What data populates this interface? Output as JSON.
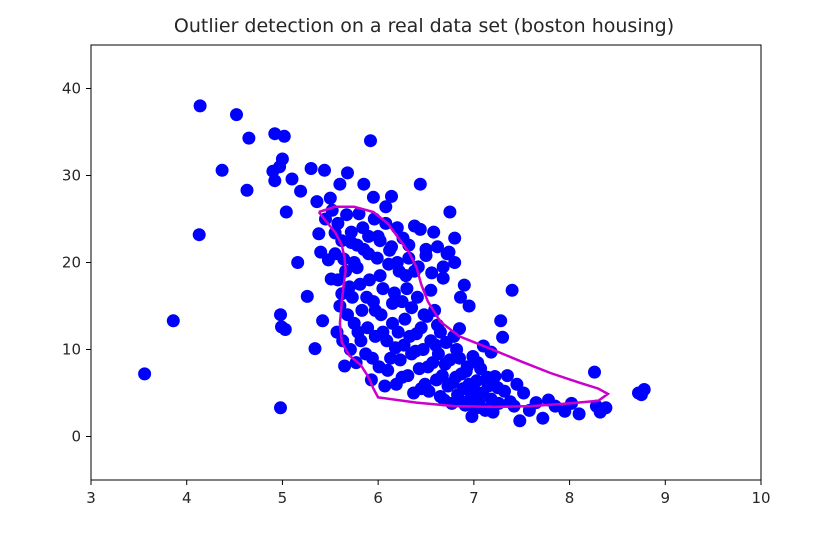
{
  "chart_data": {
    "type": "scatter",
    "title": "Outlier detection on a real data set (boston housing)",
    "xlabel": "",
    "ylabel": "",
    "xlim": [
      3,
      10
    ],
    "ylim": [
      -5,
      45
    ],
    "xticks": [
      3,
      4,
      5,
      6,
      7,
      8,
      9,
      10
    ],
    "yticks": [
      0,
      10,
      20,
      30,
      40
    ],
    "grid": false,
    "legend": "none",
    "series": [
      {
        "color": "#0000ff",
        "marker": "circle",
        "points": [
          [
            3.56,
            7.2
          ],
          [
            3.86,
            13.3
          ],
          [
            4.13,
            23.2
          ],
          [
            4.14,
            38.0
          ],
          [
            4.37,
            30.6
          ],
          [
            4.52,
            37.0
          ],
          [
            4.63,
            28.3
          ],
          [
            4.65,
            34.3
          ],
          [
            4.9,
            30.5
          ],
          [
            4.92,
            34.8
          ],
          [
            4.92,
            29.4
          ],
          [
            4.97,
            31.0
          ],
          [
            4.98,
            3.3
          ],
          [
            4.98,
            14.0
          ],
          [
            4.99,
            12.6
          ],
          [
            5.0,
            31.9
          ],
          [
            5.02,
            34.5
          ],
          [
            5.03,
            12.3
          ],
          [
            5.04,
            25.8
          ],
          [
            5.1,
            29.6
          ],
          [
            5.16,
            20.0
          ],
          [
            5.19,
            28.2
          ],
          [
            5.26,
            16.1
          ],
          [
            5.3,
            30.8
          ],
          [
            5.34,
            10.1
          ],
          [
            5.36,
            27.0
          ],
          [
            5.38,
            23.3
          ],
          [
            5.4,
            21.2
          ],
          [
            5.42,
            13.3
          ],
          [
            5.44,
            30.6
          ],
          [
            5.45,
            25.0
          ],
          [
            5.48,
            20.3
          ],
          [
            5.5,
            27.4
          ],
          [
            5.51,
            18.1
          ],
          [
            5.55,
            23.4
          ],
          [
            5.57,
            12.0
          ],
          [
            5.6,
            29.0
          ],
          [
            5.62,
            16.4
          ],
          [
            5.64,
            20.4
          ],
          [
            5.65,
            8.1
          ],
          [
            5.68,
            30.3
          ],
          [
            5.7,
            17.2
          ],
          [
            5.72,
            22.3
          ],
          [
            5.75,
            13.0
          ],
          [
            5.78,
            19.4
          ],
          [
            5.8,
            25.6
          ],
          [
            5.82,
            11.0
          ],
          [
            5.85,
            29.0
          ],
          [
            5.88,
            16.0
          ],
          [
            5.9,
            21.0
          ],
          [
            5.92,
            34.0
          ],
          [
            5.94,
            9.0
          ],
          [
            5.95,
            27.5
          ],
          [
            5.97,
            14.5
          ],
          [
            6.0,
            23.0
          ],
          [
            6.02,
            18.5
          ],
          [
            6.05,
            12.0
          ],
          [
            6.08,
            26.4
          ],
          [
            6.1,
            7.6
          ],
          [
            6.12,
            21.4
          ],
          [
            6.14,
            27.6
          ],
          [
            6.15,
            15.3
          ],
          [
            6.18,
            10.2
          ],
          [
            6.2,
            24.0
          ],
          [
            6.22,
            19.0
          ],
          [
            6.25,
            6.8
          ],
          [
            6.28,
            13.5
          ],
          [
            6.3,
            17.0
          ],
          [
            6.32,
            22.0
          ],
          [
            6.35,
            9.5
          ],
          [
            6.38,
            24.2
          ],
          [
            6.4,
            11.8
          ],
          [
            6.42,
            19.5
          ],
          [
            6.44,
            29.0
          ],
          [
            6.45,
            5.5
          ],
          [
            6.48,
            14.0
          ],
          [
            6.5,
            21.5
          ],
          [
            6.52,
            8.0
          ],
          [
            6.55,
            16.8
          ],
          [
            6.58,
            23.5
          ],
          [
            6.6,
            10.5
          ],
          [
            6.62,
            12.8
          ],
          [
            6.65,
            4.6
          ],
          [
            6.68,
            18.2
          ],
          [
            6.7,
            8.3
          ],
          [
            6.72,
            21.0
          ],
          [
            6.75,
            25.8
          ],
          [
            6.78,
            6.2
          ],
          [
            6.8,
            22.8
          ],
          [
            6.82,
            10.0
          ],
          [
            6.85,
            12.4
          ],
          [
            6.88,
            4.0
          ],
          [
            6.9,
            17.4
          ],
          [
            6.92,
            7.5
          ],
          [
            6.95,
            15.0
          ],
          [
            6.98,
            2.3
          ],
          [
            7.0,
            5.4
          ],
          [
            7.04,
            8.5
          ],
          [
            7.08,
            3.3
          ],
          [
            7.1,
            10.4
          ],
          [
            7.14,
            6.8
          ],
          [
            7.18,
            9.7
          ],
          [
            7.2,
            2.8
          ],
          [
            7.25,
            5.6
          ],
          [
            7.28,
            13.3
          ],
          [
            7.3,
            11.4
          ],
          [
            7.35,
            7.0
          ],
          [
            7.4,
            16.8
          ],
          [
            7.42,
            3.5
          ],
          [
            7.48,
            1.8
          ],
          [
            7.52,
            5.0
          ],
          [
            7.58,
            3.0
          ],
          [
            7.65,
            3.9
          ],
          [
            7.72,
            2.1
          ],
          [
            7.78,
            4.2
          ],
          [
            7.85,
            3.5
          ],
          [
            7.95,
            2.9
          ],
          [
            8.02,
            3.8
          ],
          [
            8.1,
            2.6
          ],
          [
            8.26,
            7.4
          ],
          [
            8.28,
            3.5
          ],
          [
            8.32,
            2.8
          ],
          [
            8.38,
            3.3
          ],
          [
            8.72,
            5.0
          ],
          [
            8.75,
            4.8
          ],
          [
            8.78,
            5.4
          ],
          [
            5.55,
            21.0
          ],
          [
            5.58,
            18.0
          ],
          [
            5.6,
            15.0
          ],
          [
            5.63,
            11.0
          ],
          [
            5.66,
            19.0
          ],
          [
            5.68,
            14.0
          ],
          [
            5.71,
            10.0
          ],
          [
            5.73,
            16.0
          ],
          [
            5.75,
            20.0
          ],
          [
            5.77,
            8.5
          ],
          [
            5.79,
            12.0
          ],
          [
            5.81,
            17.5
          ],
          [
            5.83,
            14.5
          ],
          [
            5.85,
            21.5
          ],
          [
            5.87,
            9.5
          ],
          [
            5.89,
            12.5
          ],
          [
            5.91,
            18.0
          ],
          [
            5.93,
            6.5
          ],
          [
            5.95,
            15.5
          ],
          [
            5.97,
            11.5
          ],
          [
            5.99,
            20.5
          ],
          [
            6.01,
            8.0
          ],
          [
            6.03,
            14.0
          ],
          [
            6.05,
            17.0
          ],
          [
            6.07,
            5.8
          ],
          [
            6.09,
            11.0
          ],
          [
            6.11,
            19.8
          ],
          [
            6.13,
            9.0
          ],
          [
            6.15,
            13.0
          ],
          [
            6.17,
            16.5
          ],
          [
            6.19,
            6.0
          ],
          [
            6.21,
            12.0
          ],
          [
            6.23,
            8.8
          ],
          [
            6.25,
            15.5
          ],
          [
            6.27,
            10.5
          ],
          [
            6.29,
            18.5
          ],
          [
            6.31,
            7.0
          ],
          [
            6.33,
            11.5
          ],
          [
            6.35,
            14.8
          ],
          [
            6.37,
            5.0
          ],
          [
            6.39,
            9.8
          ],
          [
            6.41,
            16.0
          ],
          [
            6.43,
            7.8
          ],
          [
            6.45,
            12.5
          ],
          [
            6.47,
            10.0
          ],
          [
            6.49,
            6.0
          ],
          [
            6.51,
            13.8
          ],
          [
            6.53,
            5.2
          ],
          [
            6.55,
            11.0
          ],
          [
            6.57,
            8.5
          ],
          [
            6.59,
            14.5
          ],
          [
            6.61,
            6.5
          ],
          [
            6.63,
            9.5
          ],
          [
            6.65,
            12.0
          ],
          [
            6.67,
            7.0
          ],
          [
            6.69,
            4.2
          ],
          [
            6.71,
            10.8
          ],
          [
            6.73,
            5.8
          ],
          [
            6.75,
            8.8
          ],
          [
            6.77,
            3.8
          ],
          [
            6.79,
            11.5
          ],
          [
            6.81,
            6.8
          ],
          [
            6.83,
            4.8
          ],
          [
            6.85,
            9.0
          ],
          [
            6.87,
            7.2
          ],
          [
            6.89,
            5.5
          ],
          [
            6.91,
            3.6
          ],
          [
            6.93,
            8.0
          ],
          [
            6.95,
            6.0
          ],
          [
            6.97,
            4.5
          ],
          [
            6.99,
            9.2
          ],
          [
            7.01,
            3.2
          ],
          [
            7.03,
            6.4
          ],
          [
            7.05,
            4.0
          ],
          [
            7.07,
            7.8
          ],
          [
            7.09,
            5.0
          ],
          [
            7.12,
            3.0
          ],
          [
            7.15,
            5.8
          ],
          [
            7.18,
            4.3
          ],
          [
            7.22,
            6.9
          ],
          [
            7.26,
            3.8
          ],
          [
            7.32,
            5.2
          ],
          [
            7.38,
            4.0
          ],
          [
            7.45,
            6.0
          ],
          [
            5.52,
            26.0
          ],
          [
            5.58,
            24.5
          ],
          [
            5.62,
            22.5
          ],
          [
            5.67,
            25.5
          ],
          [
            5.72,
            23.5
          ],
          [
            5.78,
            22.0
          ],
          [
            5.84,
            24.0
          ],
          [
            5.9,
            23.0
          ],
          [
            5.96,
            25.0
          ],
          [
            6.02,
            22.5
          ],
          [
            6.08,
            24.5
          ],
          [
            6.14,
            21.8
          ],
          [
            6.2,
            20.0
          ],
          [
            6.26,
            22.8
          ],
          [
            6.32,
            20.5
          ],
          [
            6.38,
            19.0
          ],
          [
            6.44,
            23.8
          ],
          [
            6.5,
            20.8
          ],
          [
            6.56,
            18.8
          ],
          [
            6.62,
            21.8
          ],
          [
            6.68,
            19.5
          ],
          [
            6.74,
            21.2
          ],
          [
            6.8,
            20.0
          ],
          [
            6.86,
            16.0
          ]
        ]
      }
    ],
    "contour": {
      "color": "#cc00cc",
      "points": [
        [
          5.38,
          25.8
        ],
        [
          5.55,
          26.4
        ],
        [
          5.75,
          26.4
        ],
        [
          5.95,
          25.8
        ],
        [
          6.1,
          24.5
        ],
        [
          6.2,
          23.0
        ],
        [
          6.32,
          21.2
        ],
        [
          6.4,
          19.5
        ],
        [
          6.45,
          17.5
        ],
        [
          6.52,
          15.5
        ],
        [
          6.65,
          13.2
        ],
        [
          6.85,
          11.5
        ],
        [
          7.15,
          10.2
        ],
        [
          7.5,
          8.6
        ],
        [
          7.8,
          7.3
        ],
        [
          8.1,
          6.2
        ],
        [
          8.3,
          5.5
        ],
        [
          8.4,
          4.9
        ],
        [
          8.3,
          4.1
        ],
        [
          8.0,
          3.8
        ],
        [
          7.6,
          3.5
        ],
        [
          7.2,
          3.4
        ],
        [
          6.8,
          3.5
        ],
        [
          6.4,
          3.9
        ],
        [
          6.0,
          4.5
        ],
        [
          5.95,
          5.5
        ],
        [
          5.9,
          6.8
        ],
        [
          5.82,
          8.2
        ],
        [
          5.7,
          9.3
        ],
        [
          5.62,
          10.8
        ],
        [
          5.6,
          13.0
        ],
        [
          5.62,
          15.5
        ],
        [
          5.64,
          17.5
        ],
        [
          5.66,
          19.0
        ],
        [
          5.65,
          20.5
        ],
        [
          5.62,
          22.0
        ],
        [
          5.55,
          23.5
        ],
        [
          5.45,
          24.8
        ],
        [
          5.38,
          25.8
        ]
      ]
    }
  }
}
